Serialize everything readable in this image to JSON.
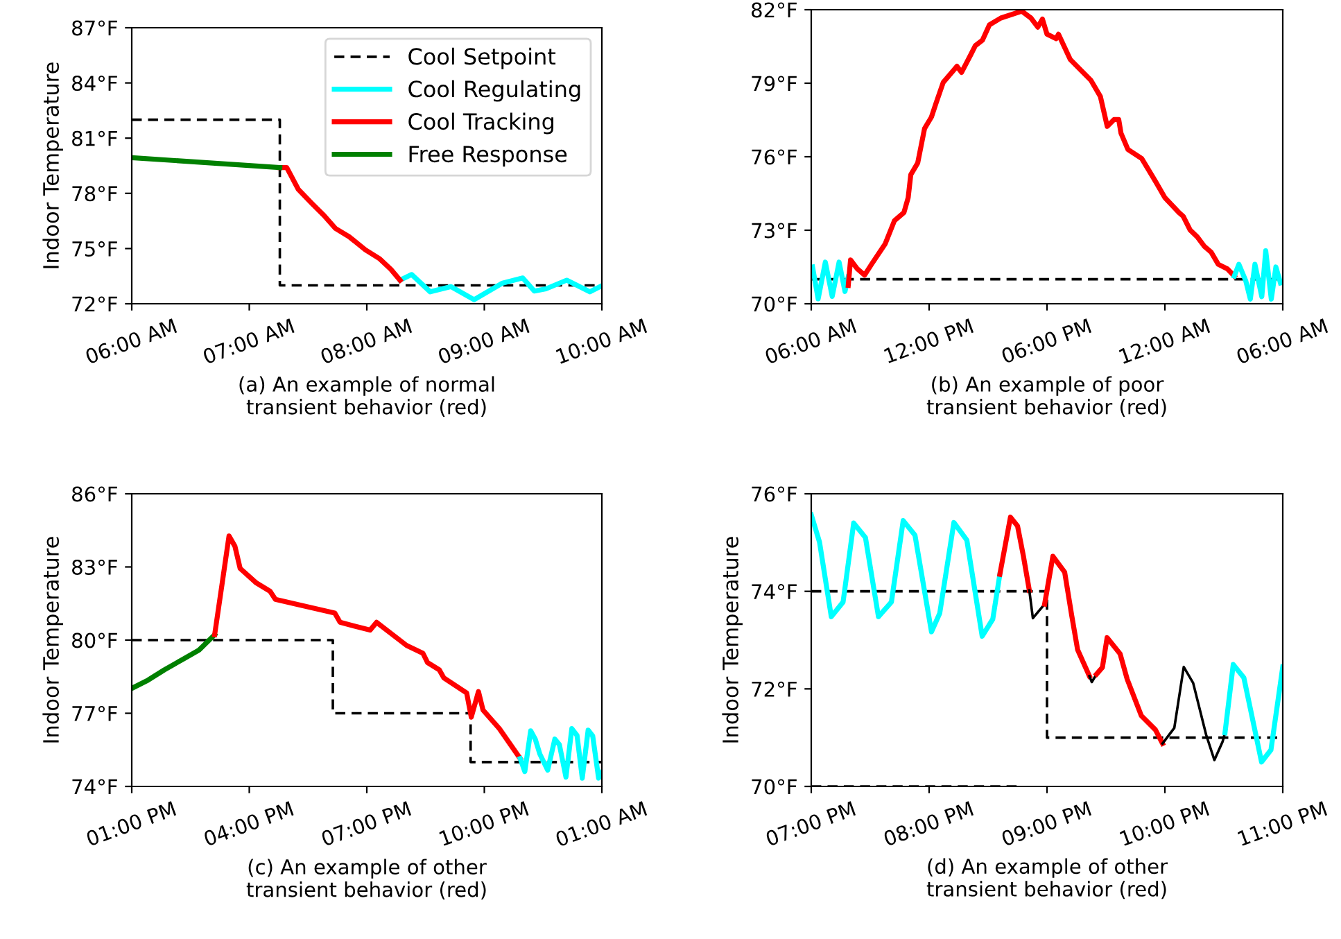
{
  "chart_data": [
    {
      "type": "line",
      "xlabel": "(a) An example of normal\ntransient behavior (red)",
      "ylabel": "Indoor Temperature",
      "legend": "top right",
      "grid": false,
      "xlim": [
        6,
        10
      ],
      "xticks": [
        {
          "value": 6,
          "label": "06:00 AM"
        },
        {
          "value": 7,
          "label": "07:00 AM"
        },
        {
          "value": 8,
          "label": "08:00 AM"
        },
        {
          "value": 9,
          "label": "09:00 AM"
        },
        {
          "value": 10,
          "label": "10:00 AM"
        }
      ],
      "ylim": [
        72,
        87
      ],
      "yticks": [
        {
          "value": 72,
          "label": "72°F"
        },
        {
          "value": 75,
          "label": "75°F"
        },
        {
          "value": 78,
          "label": "78°F"
        },
        {
          "value": 81,
          "label": "81°F"
        },
        {
          "value": 84,
          "label": "84°F"
        },
        {
          "value": 87,
          "label": "87°F"
        }
      ],
      "series": [
        {
          "name": "Cool Setpoint",
          "color": "#000000",
          "line_style": "dashed",
          "x": [
            6,
            7.26,
            7.26,
            10
          ],
          "values": [
            82,
            82,
            73,
            73
          ]
        },
        {
          "name": "Cool Regulating",
          "color": "#00ffff",
          "x": [
            8.283,
            8.382,
            8.539,
            8.717,
            8.913,
            9.15,
            9.327,
            9.425,
            9.524,
            9.701,
            9.898,
            10.0
          ],
          "values": [
            73.28,
            73.59,
            72.65,
            72.93,
            72.22,
            73.11,
            73.4,
            72.69,
            72.81,
            73.28,
            72.65,
            72.98
          ]
        },
        {
          "name": "Cool Tracking",
          "color": "#ff0000",
          "x": [
            7.26,
            7.319,
            7.417,
            7.535,
            7.634,
            7.732,
            7.85,
            7.988,
            8.106,
            8.205,
            8.283
          ],
          "values": [
            79.4,
            79.4,
            78.22,
            77.44,
            76.81,
            76.1,
            75.64,
            74.93,
            74.46,
            73.87,
            73.28
          ]
        },
        {
          "name": "Free Response",
          "color": "#008000",
          "x": [
            6,
            7.26
          ],
          "values": [
            79.94,
            79.4
          ]
        }
      ]
    },
    {
      "type": "line",
      "xlabel": "(b) An example of poor\ntransient behavior (red)",
      "grid": false,
      "xlim": [
        "2000-01-01T06:00",
        "2000-01-02T06:00"
      ],
      "xticks": [
        {
          "value": "2000-01-01T06:00",
          "label": "06:00 AM"
        },
        {
          "value": "2000-01-01T12:00",
          "label": "12:00 PM"
        },
        {
          "value": "2000-01-01T18:00",
          "label": "06:00 PM"
        },
        {
          "value": "2000-01-02T00:00",
          "label": "12:00 AM"
        },
        {
          "value": "2000-01-02T06:00",
          "label": "06:00 AM"
        }
      ],
      "ylim": [
        70,
        82
      ],
      "yticks": [
        {
          "value": 70,
          "label": "70°F"
        },
        {
          "value": 73,
          "label": "73°F"
        },
        {
          "value": 76,
          "label": "76°F"
        },
        {
          "value": 79,
          "label": "79°F"
        },
        {
          "value": 82,
          "label": "82°F"
        }
      ],
      "series": [
        {
          "color": "#000000",
          "line_style": "dashed",
          "x": [
            "2000-01-01T06:00",
            "2000-01-02T06:00"
          ],
          "values": [
            71,
            71
          ]
        },
        {
          "color": "#00ffff",
          "x": [
            "2000-01-01T06:04",
            "2000-01-01T06:21",
            "2000-01-01T06:43",
            "2000-01-01T07:04",
            "2000-01-01T07:25",
            "2000-01-01T07:43",
            "2000-01-01T07:53"
          ],
          "values": [
            71.5,
            70.2,
            71.7,
            70.3,
            71.7,
            70.5,
            71.1
          ]
        },
        {
          "color": "#ff0000",
          "x": [
            "2000-01-01T07:53",
            "2000-01-01T08:00",
            "2000-01-01T08:21",
            "2000-01-01T08:43",
            "2000-01-01T09:04",
            "2000-01-01T09:46",
            "2000-01-01T10:14",
            "2000-01-01T10:43",
            "2000-01-01T10:56",
            "2000-01-01T11:04",
            "2000-01-01T11:25",
            "2000-01-01T11:46",
            "2000-01-01T12:07",
            "2000-01-01T12:21",
            "2000-01-01T12:43",
            "2000-01-01T13:25",
            "2000-01-01T13:39",
            "2000-01-01T14:07",
            "2000-01-01T14:21",
            "2000-01-01T14:43",
            "2000-01-01T15:04",
            "2000-01-01T15:39",
            "2000-01-01T16:43",
            "2000-01-01T17:11",
            "2000-01-01T17:32",
            "2000-01-01T17:46",
            "2000-01-01T18:00",
            "2000-01-01T18:28",
            "2000-01-01T18:35",
            "2000-01-01T19:11",
            "2000-01-01T20:14",
            "2000-01-01T20:43",
            "2000-01-01T21:04",
            "2000-01-01T21:25",
            "2000-01-01T21:39",
            "2000-01-01T21:46",
            "2000-01-01T22:07",
            "2000-01-01T22:49",
            "2000-01-01T23:32",
            "2000-01-02T00:00",
            "2000-01-02T00:43",
            "2000-01-02T00:56",
            "2000-01-02T01:17",
            "2000-01-02T01:39",
            "2000-01-02T02:00",
            "2000-01-02T02:21",
            "2000-01-02T02:43",
            "2000-01-02T03:11",
            "2000-01-02T03:32"
          ],
          "values": [
            70.75,
            71.79,
            71.42,
            71.17,
            71.61,
            72.45,
            73.39,
            73.72,
            74.33,
            75.27,
            75.74,
            77.15,
            77.62,
            78.18,
            79.03,
            79.69,
            79.44,
            80.16,
            80.53,
            80.76,
            81.38,
            81.66,
            81.94,
            81.66,
            81.29,
            81.62,
            81.0,
            80.82,
            81.0,
            79.97,
            79.12,
            78.46,
            77.24,
            77.52,
            77.52,
            76.96,
            76.3,
            75.93,
            74.98,
            74.33,
            73.72,
            73.57,
            73.01,
            72.73,
            72.35,
            72.11,
            71.61,
            71.42,
            71.13
          ]
        },
        {
          "color": "#00ffff",
          "x": [
            "2000-01-02T03:32",
            "2000-01-02T03:46",
            "2000-01-02T04:07",
            "2000-01-02T04:21",
            "2000-01-02T04:35",
            "2000-01-02T04:56",
            "2000-01-02T05:08",
            "2000-01-02T05:25",
            "2000-01-02T05:39",
            "2000-01-02T05:53"
          ],
          "values": [
            71.13,
            71.61,
            70.94,
            70.19,
            71.61,
            70.29,
            72.16,
            70.19,
            71.5,
            70.85
          ]
        }
      ]
    },
    {
      "type": "line",
      "xlabel": "(c) An example of other\ntransient behavior (red)",
      "ylabel": "Indoor Temperature",
      "grid": false,
      "xlim": [
        "2000-01-01T13:00",
        "2000-01-02T01:00"
      ],
      "xticks": [
        {
          "value": "2000-01-01T13:00",
          "label": "01:00 PM"
        },
        {
          "value": "2000-01-01T16:00",
          "label": "04:00 PM"
        },
        {
          "value": "2000-01-01T19:00",
          "label": "07:00 PM"
        },
        {
          "value": "2000-01-01T22:00",
          "label": "10:00 PM"
        },
        {
          "value": "2000-01-02T01:00",
          "label": "01:00 AM"
        }
      ],
      "ylim": [
        74,
        86
      ],
      "yticks": [
        {
          "value": 74,
          "label": "74°F"
        },
        {
          "value": 77,
          "label": "77°F"
        },
        {
          "value": 80,
          "label": "80°F"
        },
        {
          "value": 83,
          "label": "83°F"
        },
        {
          "value": 86,
          "label": "86°F"
        }
      ],
      "series": [
        {
          "color": "#000000",
          "line_style": "dashed",
          "x": [
            "2000-01-01T13:00",
            "2000-01-01T18:08",
            "2000-01-01T18:08",
            "2000-01-01T21:39",
            "2000-01-01T21:39",
            "2000-01-02T01:00"
          ],
          "values": [
            80,
            80,
            77,
            77,
            75,
            75
          ]
        },
        {
          "color": "#008000",
          "x": [
            "2000-01-01T13:00",
            "2000-01-01T13:25",
            "2000-01-01T13:50",
            "2000-01-01T14:18",
            "2000-01-01T14:43",
            "2000-01-01T15:07"
          ],
          "values": [
            78.02,
            78.36,
            78.78,
            79.21,
            79.59,
            80.22
          ]
        },
        {
          "color": "#ff0000",
          "x": [
            "2000-01-01T15:07",
            "2000-01-01T15:18",
            "2000-01-01T15:29",
            "2000-01-01T15:38",
            "2000-01-01T15:46",
            "2000-01-01T16:11",
            "2000-01-01T16:32",
            "2000-01-01T16:40",
            "2000-01-01T17:19",
            "2000-01-01T18:11",
            "2000-01-01T18:19",
            "2000-01-01T19:05",
            "2000-01-01T19:15",
            "2000-01-01T20:01",
            "2000-01-01T20:26",
            "2000-01-01T20:33",
            "2000-01-01T20:51",
            "2000-01-01T20:58",
            "2000-01-01T21:33",
            "2000-01-01T21:40",
            "2000-01-01T21:51",
            "2000-01-01T21:58",
            "2000-01-01T22:23",
            "2000-01-01T22:55"
          ],
          "values": [
            80.22,
            82.24,
            84.27,
            83.85,
            82.94,
            82.34,
            82.0,
            81.67,
            81.43,
            81.11,
            80.73,
            80.41,
            80.73,
            79.78,
            79.46,
            79.08,
            78.78,
            78.45,
            77.83,
            76.84,
            77.89,
            77.13,
            76.37,
            75.14
          ]
        },
        {
          "color": "#00ffff",
          "x": [
            "2000-01-01T22:55",
            "2000-01-01T23:02",
            "2000-01-01T23:11",
            "2000-01-01T23:18",
            "2000-01-01T23:25",
            "2000-01-01T23:37",
            "2000-01-01T23:48",
            "2000-01-01T23:55",
            "2000-01-02T00:05",
            "2000-01-02T00:14",
            "2000-01-02T00:22",
            "2000-01-02T00:30",
            "2000-01-02T00:39",
            "2000-01-02T00:46",
            "2000-01-02T00:55",
            "2000-01-02T01:00"
          ],
          "values": [
            75.14,
            74.61,
            76.28,
            75.94,
            75.33,
            74.67,
            75.94,
            75.71,
            74.38,
            76.37,
            76.09,
            74.34,
            76.31,
            76.07,
            74.34,
            74.57
          ]
        }
      ]
    },
    {
      "type": "line",
      "xlabel": "(d) An example of other\ntransient behavior (red)",
      "ylabel": "Indoor Temperature",
      "grid": false,
      "xlim": [
        19,
        23
      ],
      "xticks": [
        {
          "value": 19,
          "label": "07:00 PM"
        },
        {
          "value": 20,
          "label": "08:00 PM"
        },
        {
          "value": 21,
          "label": "09:00 PM"
        },
        {
          "value": 22,
          "label": "10:00 PM"
        },
        {
          "value": 23,
          "label": "11:00 PM"
        }
      ],
      "ylim": [
        70,
        76
      ],
      "yticks": [
        {
          "value": 70,
          "label": "70°F"
        },
        {
          "value": 72,
          "label": "72°F"
        },
        {
          "value": 74,
          "label": "74°F"
        },
        {
          "value": 76,
          "label": "76°F"
        }
      ],
      "series": [
        {
          "color": "#000000",
          "line_style": "dashed",
          "x": [
            19,
            21.0,
            21.0,
            23
          ],
          "values": [
            74,
            74,
            71,
            71
          ]
        },
        {
          "color": "#000000",
          "line_style": "dashed",
          "x": [
            19,
            20.78
          ],
          "values": [
            70,
            70
          ]
        },
        {
          "color": "#00ffff",
          "x": [
            19.0,
            19.07,
            19.17,
            19.27,
            19.36,
            19.46,
            19.57,
            19.68,
            19.78,
            19.88,
            20.02,
            20.09,
            20.21,
            20.32,
            20.45,
            20.54,
            20.6
          ],
          "values": [
            75.57,
            75.01,
            73.48,
            73.78,
            75.4,
            75.1,
            73.48,
            73.78,
            75.45,
            75.15,
            73.17,
            73.55,
            75.41,
            75.05,
            73.08,
            73.43,
            74.35
          ]
        },
        {
          "color": "#ff0000",
          "x": [
            20.6,
            20.69,
            20.75,
            20.8,
            20.85
          ],
          "values": [
            74.35,
            75.52,
            75.34,
            74.72,
            74.02
          ]
        },
        {
          "color": "#000000",
          "x": [
            20.85,
            20.88,
            20.98
          ],
          "values": [
            74.02,
            73.45,
            73.74
          ]
        },
        {
          "color": "#ff0000",
          "x": [
            20.98,
            21.05,
            21.15,
            21.21,
            21.26,
            21.36
          ],
          "values": [
            73.74,
            74.72,
            74.39,
            73.5,
            72.8,
            72.26
          ]
        },
        {
          "color": "#000000",
          "x": [
            21.36,
            21.38,
            21.42
          ],
          "values": [
            72.26,
            72.14,
            72.3
          ]
        },
        {
          "color": "#ff0000",
          "x": [
            21.42,
            21.47,
            21.51,
            21.62,
            21.68,
            21.8,
            21.92,
            21.98
          ],
          "values": [
            72.3,
            72.44,
            73.05,
            72.72,
            72.2,
            71.45,
            71.16,
            70.88
          ]
        },
        {
          "color": "#000000",
          "x": [
            21.98,
            22.08,
            22.16,
            22.24,
            22.35,
            22.42,
            22.49,
            22.51
          ],
          "values": [
            70.88,
            71.2,
            72.45,
            72.12,
            71.06,
            70.54,
            70.92,
            71.1
          ]
        },
        {
          "color": "#00ffff",
          "x": [
            22.51,
            22.58,
            22.67,
            22.82,
            22.9,
            23.0
          ],
          "values": [
            71.1,
            72.5,
            72.23,
            70.5,
            70.75,
            72.45
          ]
        }
      ]
    }
  ]
}
